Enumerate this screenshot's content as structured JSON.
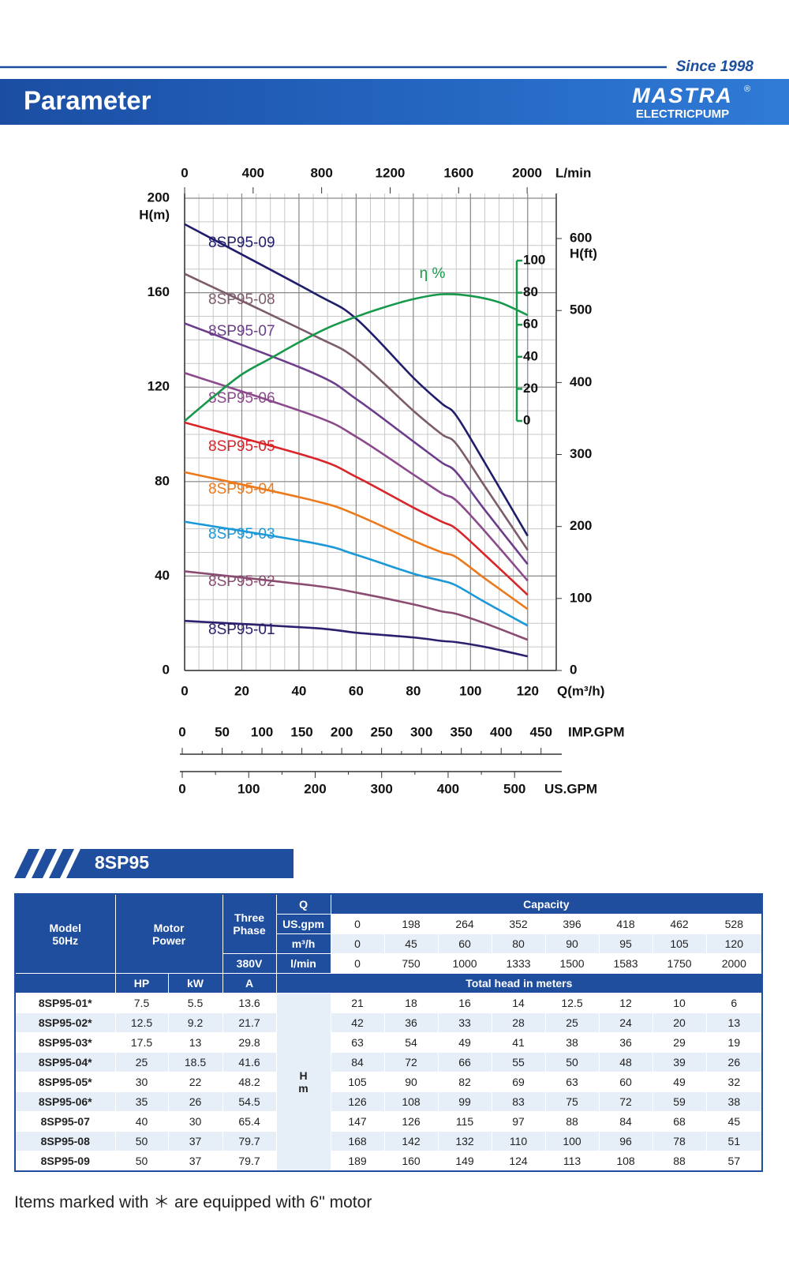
{
  "header": {
    "since": "Since 1998",
    "title": "Parameter",
    "brand": "MASTRA",
    "registered": "®",
    "brand_sub": "ELECTRICPUMP"
  },
  "chart_data": {
    "type": "line",
    "y_label": "H(m)",
    "x_label": "Q(m³/h)",
    "x2_label": "L/min",
    "y2_label": "H(ft)",
    "x": [
      0,
      45,
      60,
      80,
      90,
      95,
      105,
      120
    ],
    "xlim": [
      0,
      130
    ],
    "xticks": [
      0,
      20,
      40,
      60,
      80,
      100,
      120
    ],
    "ylim": [
      0,
      200
    ],
    "yticks": [
      0,
      40,
      80,
      120,
      160,
      200
    ],
    "x2lim": [
      0,
      2170
    ],
    "x2ticks": [
      0,
      400,
      800,
      1200,
      1600,
      2000
    ],
    "y2lim": [
      0,
      656
    ],
    "y2ticks": [
      0,
      100,
      200,
      300,
      400,
      500,
      600
    ],
    "y3lim": [
      0,
      100
    ],
    "y3ticks": [
      0,
      20,
      40,
      60,
      80,
      100
    ],
    "imp_gpm": {
      "label": "IMP.GPM",
      "lim": [
        0,
        476
      ],
      "ticks": [
        0,
        50,
        100,
        150,
        200,
        250,
        300,
        350,
        400,
        450
      ]
    },
    "us_gpm": {
      "label": "US.GPM",
      "lim": [
        0,
        571
      ],
      "ticks": [
        0,
        100,
        200,
        300,
        400,
        500
      ]
    },
    "grid": true,
    "series": [
      {
        "name": "8SP95-01",
        "color": "#2b1f6e",
        "values": [
          21,
          18,
          16,
          14,
          12.5,
          12,
          10,
          6
        ]
      },
      {
        "name": "8SP95-02",
        "color": "#8a4c70",
        "values": [
          42,
          36,
          33,
          28,
          25,
          24,
          20,
          13
        ]
      },
      {
        "name": "8SP95-03",
        "color": "#1a98d8",
        "values": [
          63,
          54,
          49,
          41,
          38,
          36,
          29,
          19
        ]
      },
      {
        "name": "8SP95-04",
        "color": "#ec7a1c",
        "values": [
          84,
          72,
          66,
          55,
          50,
          48,
          39,
          26
        ]
      },
      {
        "name": "8SP95-05",
        "color": "#d9252a",
        "values": [
          105,
          90,
          82,
          69,
          63,
          60,
          49,
          32
        ]
      },
      {
        "name": "8SP95-06",
        "color": "#8c4a8c",
        "values": [
          126,
          108,
          99,
          83,
          75,
          72,
          59,
          38
        ]
      },
      {
        "name": "8SP95-07",
        "color": "#6b3d8a",
        "values": [
          147,
          126,
          115,
          97,
          88,
          84,
          68,
          45
        ]
      },
      {
        "name": "8SP95-08",
        "color": "#7c5c6c",
        "values": [
          168,
          142,
          132,
          110,
          100,
          96,
          78,
          51
        ]
      },
      {
        "name": "8SP95-09",
        "color": "#1f1d6c",
        "values": [
          189,
          160,
          149,
          124,
          113,
          108,
          88,
          57
        ]
      },
      {
        "name": "η %",
        "color": "#16994a",
        "axis": "y3",
        "x": [
          0,
          10,
          20,
          30,
          40,
          50,
          60,
          70,
          80,
          90,
          100,
          110,
          120
        ],
        "values": [
          0,
          15,
          29,
          39,
          49,
          58,
          65,
          71,
          76,
          79,
          78,
          74,
          66
        ]
      }
    ]
  },
  "section_title": "8SP95",
  "table": {
    "model_header": [
      "Model",
      "50Hz"
    ],
    "motor_header": [
      "Motor",
      "Power"
    ],
    "phase_header": [
      "Three",
      "Phase"
    ],
    "voltage": "380V",
    "q_header": "Q",
    "capacity_header": "Capacity",
    "units": [
      {
        "unit": "US.gpm",
        "values": [
          0,
          198,
          264,
          352,
          396,
          418,
          462,
          528
        ]
      },
      {
        "unit": "m³/h",
        "values": [
          0,
          45,
          60,
          80,
          90,
          95,
          105,
          120
        ]
      },
      {
        "unit": "l/min",
        "values": [
          0,
          750,
          1000,
          1333,
          1500,
          1583,
          1750,
          2000
        ]
      }
    ],
    "subheaders": [
      "HP",
      "kW",
      "A"
    ],
    "head_header": "Total head in meters",
    "h_unit": [
      "H",
      "m"
    ],
    "rows": [
      {
        "model": "8SP95-01*",
        "hp": 7.5,
        "kw": 5.5,
        "a": 13.6,
        "heads": [
          21,
          18,
          16,
          14,
          12.5,
          12,
          10,
          6
        ]
      },
      {
        "model": "8SP95-02*",
        "hp": 12.5,
        "kw": 9.2,
        "a": 21.7,
        "heads": [
          42,
          36,
          33,
          28,
          25,
          24,
          20,
          13
        ]
      },
      {
        "model": "8SP95-03*",
        "hp": 17.5,
        "kw": 13,
        "a": 29.8,
        "heads": [
          63,
          54,
          49,
          41,
          38,
          36,
          29,
          19
        ]
      },
      {
        "model": "8SP95-04*",
        "hp": 25,
        "kw": 18.5,
        "a": 41.6,
        "heads": [
          84,
          72,
          66,
          55,
          50,
          48,
          39,
          26
        ]
      },
      {
        "model": "8SP95-05*",
        "hp": 30,
        "kw": 22,
        "a": 48.2,
        "heads": [
          105,
          90,
          82,
          69,
          63,
          60,
          49,
          32
        ]
      },
      {
        "model": "8SP95-06*",
        "hp": 35,
        "kw": 26,
        "a": 54.5,
        "heads": [
          126,
          108,
          99,
          83,
          75,
          72,
          59,
          38
        ]
      },
      {
        "model": "8SP95-07",
        "hp": 40,
        "kw": 30,
        "a": 65.4,
        "heads": [
          147,
          126,
          115,
          97,
          88,
          84,
          68,
          45
        ]
      },
      {
        "model": "8SP95-08",
        "hp": 50,
        "kw": 37,
        "a": 79.7,
        "heads": [
          168,
          142,
          132,
          110,
          100,
          96,
          78,
          51
        ]
      },
      {
        "model": "8SP95-09",
        "hp": 50,
        "kw": 37,
        "a": 79.7,
        "heads": [
          189,
          160,
          149,
          124,
          113,
          108,
          88,
          57
        ]
      }
    ]
  },
  "footnote": "Items marked with ＊ are equipped with 6\" motor"
}
